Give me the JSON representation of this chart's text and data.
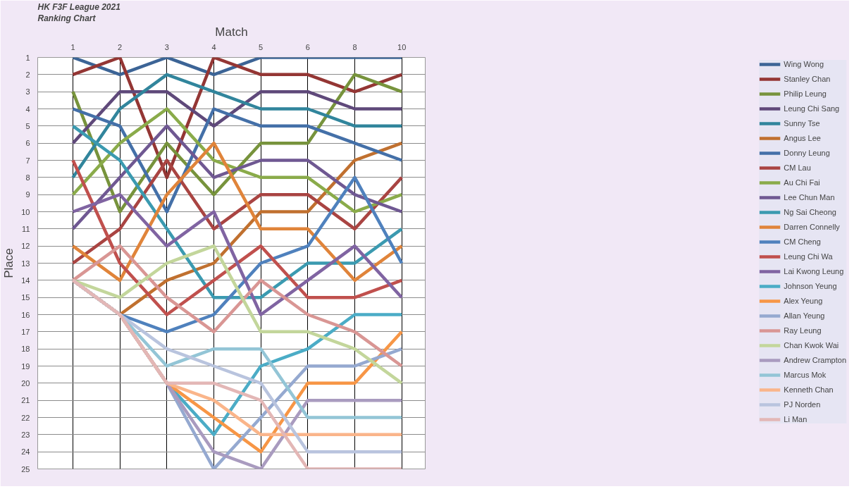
{
  "chart_data": {
    "type": "line",
    "title": "HK F3F League 2021",
    "subtitle": "Ranking Chart",
    "xlabel": "Match",
    "ylabel": "Place",
    "categories": [
      "1",
      "2",
      "3",
      "4",
      "5",
      "6",
      "8",
      "10"
    ],
    "ylim": [
      25,
      1
    ],
    "yticks": [
      1,
      2,
      3,
      4,
      5,
      6,
      7,
      8,
      9,
      10,
      11,
      12,
      13,
      14,
      15,
      16,
      17,
      18,
      19,
      20,
      21,
      22,
      23,
      24,
      25
    ],
    "grid": true,
    "legend": "right",
    "marker": "none",
    "line_style": "solid",
    "series": [
      {
        "name": "Wing Wong",
        "color": "#3c6496",
        "values": [
          1,
          2,
          1,
          2,
          1,
          1,
          1,
          1
        ]
      },
      {
        "name": "Stanley Chan",
        "color": "#943634",
        "values": [
          2,
          1,
          8,
          1,
          2,
          2,
          3,
          2
        ]
      },
      {
        "name": "Philip Leung",
        "color": "#77933c",
        "values": [
          3,
          10,
          6,
          9,
          6,
          6,
          2,
          3
        ]
      },
      {
        "name": "Leung Chi Sang",
        "color": "#5f497a",
        "values": [
          6,
          3,
          3,
          5,
          3,
          3,
          4,
          4
        ]
      },
      {
        "name": "Sunny Tse",
        "color": "#31859c",
        "values": [
          8,
          4,
          2,
          3,
          4,
          4,
          5,
          5
        ]
      },
      {
        "name": "Angus Lee",
        "color": "#c0702f",
        "values": [
          14,
          16,
          14,
          13,
          10,
          10,
          7,
          6
        ]
      },
      {
        "name": "Donny Leung",
        "color": "#4470a8",
        "values": [
          4,
          5,
          10,
          4,
          5,
          5,
          6,
          7
        ]
      },
      {
        "name": "CM Lau",
        "color": "#a94442",
        "values": [
          13,
          11,
          7,
          11,
          9,
          9,
          11,
          8
        ]
      },
      {
        "name": "Au Chi Fai",
        "color": "#8aab4a",
        "values": [
          9,
          6,
          4,
          7,
          8,
          8,
          10,
          9
        ]
      },
      {
        "name": "Lee Chun Man",
        "color": "#6f5892",
        "values": [
          11,
          8,
          5,
          8,
          7,
          7,
          9,
          10
        ]
      },
      {
        "name": "Ng Sai Cheong",
        "color": "#3b9ab0",
        "values": [
          5,
          7,
          11,
          15,
          15,
          13,
          13,
          11
        ]
      },
      {
        "name": "Darren Connelly",
        "color": "#e0843a",
        "values": [
          12,
          14,
          9,
          6,
          11,
          11,
          14,
          12
        ]
      },
      {
        "name": "CM Cheng",
        "color": "#4f81bd",
        "values": [
          14,
          16,
          17,
          16,
          13,
          12,
          8,
          13
        ]
      },
      {
        "name": "Leung Chi Wa",
        "color": "#c0504d",
        "values": [
          7,
          13,
          16,
          14,
          12,
          15,
          15,
          14
        ]
      },
      {
        "name": "Lai Kwong Leung",
        "color": "#8064a2",
        "values": [
          10,
          9,
          12,
          10,
          16,
          14,
          12,
          15
        ]
      },
      {
        "name": "Johnson Yeung",
        "color": "#4bacc6",
        "values": [
          14,
          16,
          20,
          23,
          19,
          18,
          16,
          16
        ]
      },
      {
        "name": "Alex Yeung",
        "color": "#f79646",
        "values": [
          14,
          16,
          20,
          22,
          24,
          20,
          20,
          17
        ]
      },
      {
        "name": "Allan Yeung",
        "color": "#95a9d0",
        "values": [
          14,
          16,
          20,
          25,
          22,
          19,
          19,
          18
        ]
      },
      {
        "name": "Ray Leung",
        "color": "#d99694",
        "values": [
          14,
          12,
          15,
          17,
          14,
          16,
          17,
          19
        ]
      },
      {
        "name": "Chan Kwok Wai",
        "color": "#c3d69b",
        "values": [
          14,
          15,
          13,
          12,
          17,
          17,
          18,
          20
        ]
      },
      {
        "name": "Andrew Crampton",
        "color": "#a99bbf",
        "values": [
          14,
          16,
          20,
          24,
          25,
          21,
          21,
          21
        ]
      },
      {
        "name": "Marcus Mok",
        "color": "#93c5d6",
        "values": [
          14,
          16,
          19,
          18,
          18,
          22,
          22,
          22
        ]
      },
      {
        "name": "Kenneth Chan",
        "color": "#fab58a",
        "values": [
          14,
          16,
          20,
          21,
          23,
          23,
          23,
          23
        ]
      },
      {
        "name": "PJ Norden",
        "color": "#b9c4de",
        "values": [
          14,
          16,
          18,
          19,
          20,
          24,
          24,
          24
        ]
      },
      {
        "name": "Li Man",
        "color": "#e3b7b6",
        "values": [
          14,
          16,
          20,
          20,
          21,
          25,
          25,
          25
        ]
      }
    ]
  }
}
